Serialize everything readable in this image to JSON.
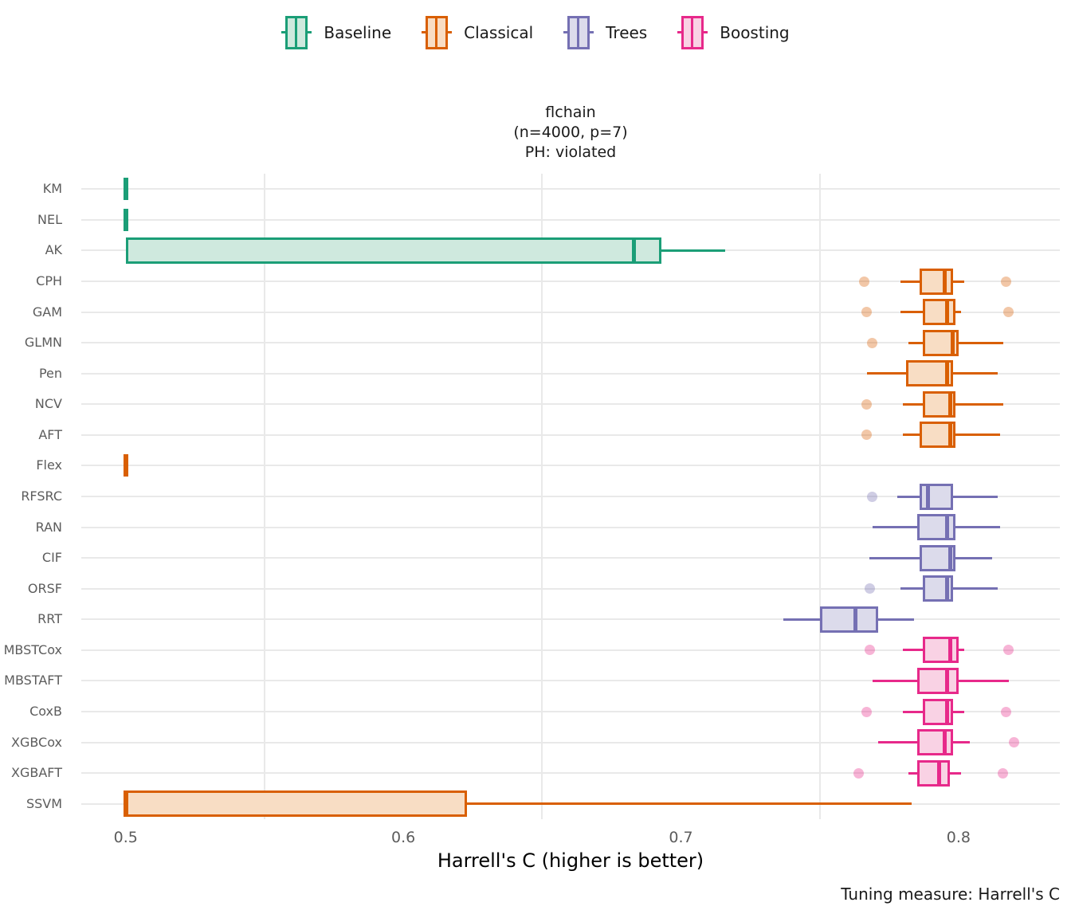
{
  "title": {
    "lines": [
      "flchain",
      "(n=4000, p=7)",
      "PH: violated"
    ]
  },
  "caption": "Tuning measure: Harrell's C",
  "axis": {
    "x_label": "Harrell's C (higher is better)"
  },
  "legend": {
    "items": [
      {
        "label": "Baseline",
        "stroke": "#1b9e77",
        "fill": "#cfe9de"
      },
      {
        "label": "Classical",
        "stroke": "#d95f02",
        "fill": "#f8ddc4"
      },
      {
        "label": "Trees",
        "stroke": "#7570b3",
        "fill": "#dcdbeb"
      },
      {
        "label": "Boosting",
        "stroke": "#e7298a",
        "fill": "#f9d2e4"
      }
    ]
  },
  "chart_data": {
    "type": "boxplot-horizontal",
    "title": "flchain (n=4000, p=7) PH: violated",
    "xlabel": "Harrell's C (higher is better)",
    "xlim": [
      0.484,
      0.8365
    ],
    "x_ticks": [
      0.5,
      0.6,
      0.7,
      0.8
    ],
    "x_tick_labels": [
      "0.5",
      "0.6",
      "0.7",
      "0.8"
    ],
    "x_minor_gridlines": [
      0.55,
      0.65,
      0.75
    ],
    "legend_position": "top",
    "groups": [
      {
        "name": "Baseline",
        "stroke": "#1b9e77",
        "fill": "#cfe9de"
      },
      {
        "name": "Classical",
        "stroke": "#d95f02",
        "fill": "#f8ddc4"
      },
      {
        "name": "Trees",
        "stroke": "#7570b3",
        "fill": "#dcdbeb"
      },
      {
        "name": "Boosting",
        "stroke": "#e7298a",
        "fill": "#f9d2e4"
      }
    ],
    "rows": [
      {
        "model": "KM",
        "group": "Baseline",
        "low": 0.5,
        "q1": 0.5,
        "median": 0.5,
        "q3": 0.5,
        "high": 0.5,
        "outliers": []
      },
      {
        "model": "NEL",
        "group": "Baseline",
        "low": 0.5,
        "q1": 0.5,
        "median": 0.5,
        "q3": 0.5,
        "high": 0.5,
        "outliers": []
      },
      {
        "model": "AK",
        "group": "Baseline",
        "low": 0.5,
        "q1": 0.5,
        "median": 0.683,
        "q3": 0.693,
        "high": 0.716,
        "outliers": []
      },
      {
        "model": "CPH",
        "group": "Classical",
        "low": 0.779,
        "q1": 0.786,
        "median": 0.795,
        "q3": 0.798,
        "high": 0.802,
        "outliers": [
          0.766,
          0.817
        ]
      },
      {
        "model": "GAM",
        "group": "Classical",
        "low": 0.779,
        "q1": 0.787,
        "median": 0.796,
        "q3": 0.799,
        "high": 0.801,
        "outliers": [
          0.767,
          0.818
        ]
      },
      {
        "model": "GLMN",
        "group": "Classical",
        "low": 0.782,
        "q1": 0.787,
        "median": 0.798,
        "q3": 0.8,
        "high": 0.816,
        "outliers": [
          0.769
        ]
      },
      {
        "model": "Pen",
        "group": "Classical",
        "low": 0.767,
        "q1": 0.781,
        "median": 0.796,
        "q3": 0.798,
        "high": 0.814,
        "outliers": []
      },
      {
        "model": "NCV",
        "group": "Classical",
        "low": 0.78,
        "q1": 0.787,
        "median": 0.797,
        "q3": 0.799,
        "high": 0.816,
        "outliers": [
          0.767
        ]
      },
      {
        "model": "AFT",
        "group": "Classical",
        "low": 0.78,
        "q1": 0.786,
        "median": 0.797,
        "q3": 0.799,
        "high": 0.815,
        "outliers": [
          0.767
        ]
      },
      {
        "model": "Flex",
        "group": "Classical",
        "low": 0.5,
        "q1": 0.5,
        "median": 0.5,
        "q3": 0.5,
        "high": 0.5,
        "outliers": []
      },
      {
        "model": "RFSRC",
        "group": "Trees",
        "low": 0.778,
        "q1": 0.786,
        "median": 0.789,
        "q3": 0.798,
        "high": 0.814,
        "outliers": [
          0.769
        ]
      },
      {
        "model": "RAN",
        "group": "Trees",
        "low": 0.769,
        "q1": 0.785,
        "median": 0.796,
        "q3": 0.799,
        "high": 0.815,
        "outliers": []
      },
      {
        "model": "CIF",
        "group": "Trees",
        "low": 0.768,
        "q1": 0.786,
        "median": 0.797,
        "q3": 0.799,
        "high": 0.812,
        "outliers": []
      },
      {
        "model": "ORSF",
        "group": "Trees",
        "low": 0.779,
        "q1": 0.787,
        "median": 0.796,
        "q3": 0.798,
        "high": 0.814,
        "outliers": [
          0.768
        ]
      },
      {
        "model": "RRT",
        "group": "Trees",
        "low": 0.737,
        "q1": 0.75,
        "median": 0.763,
        "q3": 0.771,
        "high": 0.784,
        "outliers": []
      },
      {
        "model": "MBSTCox",
        "group": "Boosting",
        "low": 0.78,
        "q1": 0.787,
        "median": 0.797,
        "q3": 0.8,
        "high": 0.802,
        "outliers": [
          0.768,
          0.818
        ]
      },
      {
        "model": "MBSTAFT",
        "group": "Boosting",
        "low": 0.769,
        "q1": 0.785,
        "median": 0.796,
        "q3": 0.8,
        "high": 0.818,
        "outliers": []
      },
      {
        "model": "CoxB",
        "group": "Boosting",
        "low": 0.78,
        "q1": 0.787,
        "median": 0.796,
        "q3": 0.798,
        "high": 0.802,
        "outliers": [
          0.767,
          0.817
        ]
      },
      {
        "model": "XGBCox",
        "group": "Boosting",
        "low": 0.771,
        "q1": 0.785,
        "median": 0.795,
        "q3": 0.798,
        "high": 0.804,
        "outliers": [
          0.82
        ]
      },
      {
        "model": "XGBAFT",
        "group": "Boosting",
        "low": 0.782,
        "q1": 0.785,
        "median": 0.793,
        "q3": 0.797,
        "high": 0.801,
        "outliers": [
          0.764,
          0.816
        ]
      },
      {
        "model": "SSVM",
        "group": "Classical",
        "low": 0.5,
        "q1": 0.5,
        "median": 0.5,
        "q3": 0.623,
        "high": 0.783,
        "outliers": []
      }
    ]
  }
}
